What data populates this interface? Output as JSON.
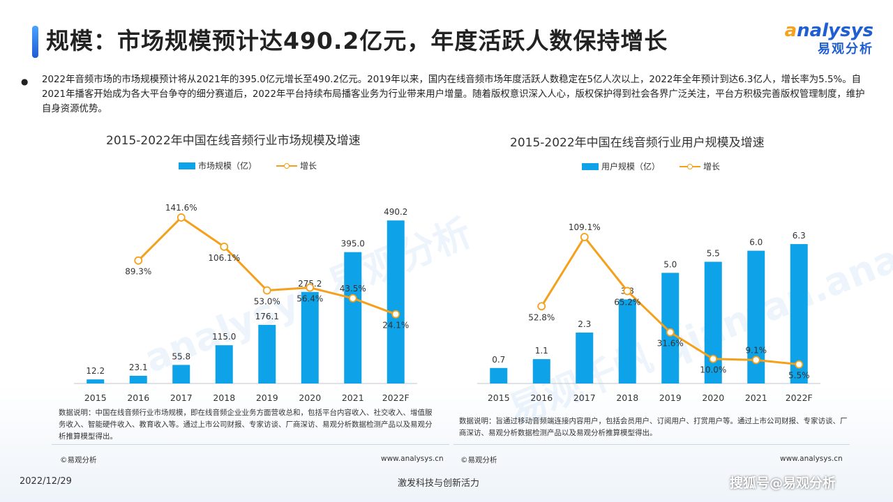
{
  "page": {
    "title": "规模：市场规模预计达490.2亿元，年度活跃人数保持增长",
    "logo_en_a": "a",
    "logo_en_rest": "nalysys",
    "logo_cn": "易观分析",
    "bullet": "●",
    "intro": "2022年音频市场的市场规模预计将从2021年的395.0亿元增长至490.2亿元。2019年以来，国内在线音频市场年度活跃人数稳定在5亿人次以上，2022年全年预计到达6.3亿人，增长率为5.5%。自2021年播客开始成为各大平台争夺的细分赛道后，2022年平台持续布局播客业务为行业带来用户增量。随着版权意识深入人心，版权保护得到社会各界广泛关注，平台方积极完善版权管理制度，维护自身资源优势。",
    "date": "2022/12/29",
    "slogan": "激发科技与创新活力",
    "watermark": "搜狐号@易观分析"
  },
  "colors": {
    "bar": "#0ea2e8",
    "line": "#f5a01a",
    "accent": "#1f5fd1"
  },
  "left": {
    "note": "数据说明：中国在线音频行业市场规模，即在线音频企业业务方面营收总和，包括平台内容收入、社交收入、增值服务收入、智能硬件收入、教育收入等。通过上市公司财报、专家访谈、厂商深访、易观分析数据检测产品以及易观分析推算模型得出。",
    "copyright": "©易观分析",
    "site": "www.analysys.cn"
  },
  "right": {
    "note": "数据说明：旨通过移动音频端连接内容用户，包括会员用户、订阅用户、打赏用户等。通过上市公司财报、专家访谈、厂商深访、易观分析数据检测产品以及易观分析推算模型得出。",
    "copyright": "©易观分析",
    "site": "www.analysys.cn"
  },
  "chart_data": [
    {
      "type": "bar",
      "title": "2015-2022年中国在线音频行业市场规模及增速",
      "categories": [
        "2015",
        "2016",
        "2017",
        "2018",
        "2019",
        "2020",
        "2021",
        "2022F"
      ],
      "series": [
        {
          "name": "市场规模（亿）",
          "type": "bar",
          "values": [
            12.2,
            23.1,
            55.8,
            115.0,
            176.1,
            275.2,
            395.0,
            490.2
          ],
          "labels": [
            "12.2",
            "23.1",
            "55.8",
            "115.0",
            "176.1",
            "275.2",
            "395.0",
            "490.2"
          ]
        },
        {
          "name": "增长",
          "type": "line",
          "values": [
            null,
            89.3,
            141.6,
            106.1,
            53.0,
            56.4,
            43.5,
            24.1
          ],
          "labels": [
            "",
            "89.3%",
            "141.6%",
            "106.1%",
            "53.0%",
            "56.4%",
            "43.5%",
            "24.1%"
          ]
        }
      ],
      "bar_max": 520,
      "line_range": [
        -60,
        150
      ],
      "legend": "top-center",
      "grid": false
    },
    {
      "type": "bar",
      "title": "2015-2022年中国在线音频行业用户规模及增速",
      "categories": [
        "2015",
        "2016",
        "2017",
        "2018",
        "2019",
        "2020",
        "2021",
        "2022F"
      ],
      "series": [
        {
          "name": "用户规模（亿）",
          "type": "bar",
          "values": [
            0.7,
            1.1,
            2.3,
            3.8,
            5.0,
            5.5,
            6.0,
            6.3
          ],
          "labels": [
            "0.7",
            "1.1",
            "2.3",
            "3.8",
            "5.0",
            "5.5",
            "6.0",
            "6.3"
          ]
        },
        {
          "name": "增长",
          "type": "line",
          "values": [
            null,
            52.8,
            109.1,
            65.2,
            31.6,
            10.0,
            9.1,
            5.5
          ],
          "labels": [
            "",
            "52.8%",
            "109.1%",
            "65.2%",
            "31.6%",
            "10.0%",
            "9.1%",
            "5.5%"
          ]
        }
      ],
      "bar_max": 7.5,
      "line_range": [
        -10,
        125
      ],
      "legend": "top-center",
      "grid": false
    }
  ]
}
